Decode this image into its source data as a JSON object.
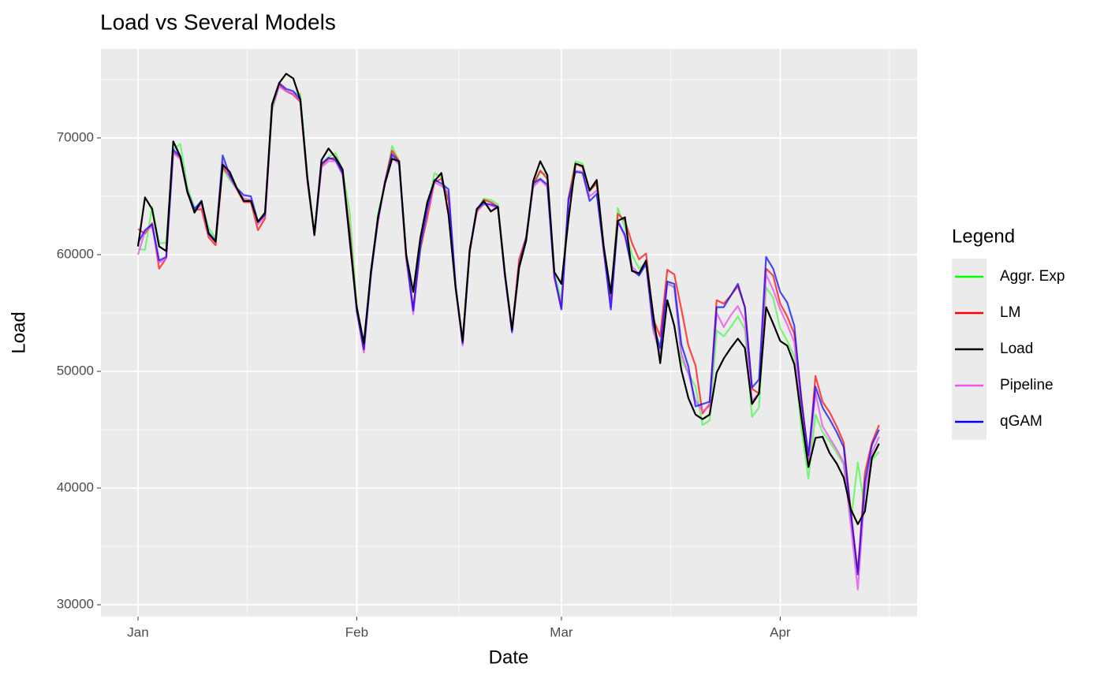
{
  "chart_data": {
    "type": "line",
    "title": "Load vs Several Models",
    "xlabel": "Date",
    "ylabel": "Load",
    "legend_title": "Legend",
    "legend": "right",
    "grid": true,
    "x": [
      0,
      1,
      2,
      3,
      4,
      5,
      6,
      7,
      8,
      9,
      10,
      11,
      12,
      13,
      14,
      15,
      16,
      17,
      18,
      19,
      20,
      21,
      22,
      23,
      24,
      25,
      26,
      27,
      28,
      29,
      30,
      31,
      32,
      33,
      34,
      35,
      36,
      37,
      38,
      39,
      40,
      41,
      42,
      43,
      44,
      45,
      46,
      47,
      48,
      49,
      50,
      51,
      52,
      53,
      54,
      55,
      56,
      57,
      58,
      59,
      60,
      61,
      62,
      63,
      64,
      65,
      66,
      67,
      68,
      69,
      70,
      71,
      72,
      73,
      74,
      75,
      76,
      77,
      78,
      79,
      80,
      81,
      82,
      83,
      84,
      85,
      86,
      87,
      88,
      89,
      90,
      91,
      92,
      93,
      94,
      95,
      96,
      97,
      98,
      99,
      100,
      101,
      102,
      103,
      104,
      105
    ],
    "xlim": [
      -5.25,
      110.4
    ],
    "xticks": [
      {
        "value": 0,
        "label": "Jan"
      },
      {
        "value": 31,
        "label": "Feb"
      },
      {
        "value": 60,
        "label": "Mar"
      },
      {
        "value": 91,
        "label": "Apr"
      }
    ],
    "ylim": [
      28990,
      77630
    ],
    "yticks": [
      30000,
      40000,
      50000,
      60000,
      70000
    ],
    "series": [
      {
        "name": "Aggr. Exp",
        "color": "#00ff00",
        "opacity": 0.5,
        "values": [
          60500,
          60400,
          64100,
          61000,
          61000,
          69000,
          69500,
          65800,
          64000,
          64400,
          62300,
          61400,
          67400,
          66400,
          65600,
          64600,
          64500,
          62900,
          63500,
          72300,
          74500,
          74000,
          73800,
          73800,
          66600,
          61900,
          67600,
          68400,
          68700,
          67200,
          63600,
          55700,
          52000,
          58000,
          63500,
          66100,
          69300,
          68000,
          60000,
          55300,
          60200,
          63700,
          67000,
          66600,
          64900,
          57000,
          52800,
          60300,
          63700,
          64800,
          64700,
          64300,
          58400,
          53400,
          58800,
          61200,
          65900,
          67100,
          66800,
          58300,
          56200,
          64800,
          68000,
          67800,
          65400,
          66200,
          60400,
          56000,
          64000,
          62300,
          60000,
          58800,
          59300,
          53500,
          51500,
          57700,
          57200,
          51000,
          49800,
          48700,
          45400,
          45800,
          53500,
          53000,
          53800,
          54700,
          53600,
          46100,
          46900,
          57200,
          56300,
          53700,
          52600,
          51300,
          45100,
          40800,
          46300,
          44800,
          44000,
          43000,
          42000,
          37100,
          42200,
          38200,
          42400,
          43100
        ]
      },
      {
        "name": "LM",
        "color": "#ff0000",
        "opacity": 0.7,
        "values": [
          62200,
          61800,
          62700,
          58800,
          59700,
          68800,
          68300,
          65300,
          63800,
          63900,
          61500,
          60800,
          67500,
          66700,
          65600,
          64500,
          64500,
          62100,
          63100,
          72600,
          74600,
          74000,
          73700,
          73100,
          66300,
          61700,
          67700,
          68200,
          68300,
          67000,
          62000,
          55300,
          51800,
          58600,
          62800,
          66300,
          68900,
          68000,
          59600,
          55400,
          60500,
          63200,
          66200,
          66500,
          64600,
          57200,
          52500,
          60500,
          63600,
          64700,
          64500,
          64100,
          58100,
          53500,
          59600,
          61500,
          66000,
          67200,
          66500,
          58000,
          55600,
          64800,
          67800,
          67500,
          65500,
          66100,
          60200,
          56200,
          63500,
          62900,
          61000,
          59600,
          60100,
          54500,
          53000,
          58700,
          58300,
          55300,
          52200,
          50500,
          46400,
          47200,
          56100,
          55800,
          56500,
          57300,
          55500,
          48500,
          48100,
          58800,
          58200,
          55800,
          54700,
          53200,
          47800,
          42300,
          49600,
          47400,
          46500,
          45300,
          43900,
          38000,
          32800,
          41300,
          43900,
          45400
        ]
      },
      {
        "name": "Load",
        "color": "#000000",
        "opacity": 1,
        "values": [
          60700,
          64900,
          63900,
          60700,
          60300,
          69700,
          68400,
          65400,
          63600,
          64600,
          61800,
          61100,
          67700,
          67100,
          65700,
          64600,
          64600,
          62800,
          63600,
          72900,
          74700,
          75500,
          75100,
          73300,
          66600,
          61700,
          68100,
          69100,
          68300,
          67300,
          61200,
          55500,
          52400,
          58500,
          63200,
          66100,
          68200,
          68000,
          60000,
          56800,
          61400,
          64500,
          66300,
          67000,
          63400,
          57200,
          52600,
          60300,
          63900,
          64600,
          63700,
          64100,
          58300,
          53600,
          58900,
          61200,
          66300,
          68000,
          66800,
          58500,
          57500,
          63000,
          67800,
          67600,
          65500,
          66400,
          60700,
          56700,
          62900,
          63200,
          58600,
          58400,
          59500,
          54900,
          50700,
          56100,
          53900,
          50100,
          47700,
          46300,
          45900,
          46300,
          49900,
          51100,
          52000,
          52800,
          52000,
          47200,
          48100,
          55500,
          54100,
          52600,
          52200,
          50600,
          46100,
          41800,
          44300,
          44400,
          43000,
          42100,
          40900,
          38200,
          36900,
          38000,
          42600,
          43800
        ]
      },
      {
        "name": "Pipeline",
        "color": "#ee55ee",
        "opacity": 0.8,
        "values": [
          60000,
          62000,
          62400,
          59300,
          59700,
          68700,
          68200,
          65300,
          63700,
          64300,
          61700,
          61100,
          67900,
          66600,
          65600,
          64800,
          64700,
          62600,
          63300,
          72600,
          74400,
          74000,
          73800,
          73200,
          66400,
          61600,
          67500,
          68000,
          68000,
          66800,
          61300,
          55100,
          51600,
          58200,
          62900,
          66100,
          68400,
          67700,
          59800,
          54900,
          60600,
          63700,
          66200,
          65900,
          65300,
          57200,
          52200,
          60200,
          63700,
          64300,
          64200,
          64000,
          58100,
          53300,
          58900,
          61300,
          65800,
          66400,
          65800,
          58000,
          55400,
          64500,
          67200,
          67100,
          65000,
          65500,
          60300,
          55500,
          63000,
          61500,
          59000,
          58300,
          59300,
          53500,
          51500,
          57500,
          57200,
          51500,
          49800,
          47500,
          46600,
          47000,
          55000,
          53800,
          54800,
          55600,
          54300,
          47500,
          48100,
          58300,
          57000,
          55300,
          54000,
          52500,
          46500,
          42000,
          48200,
          45300,
          44300,
          43300,
          42200,
          36800,
          31300,
          39700,
          43000,
          44400
        ]
      },
      {
        "name": "qGAM",
        "color": "#0000ff",
        "opacity": 0.7,
        "values": [
          61000,
          62100,
          62600,
          59500,
          59800,
          69000,
          68400,
          65400,
          63900,
          64600,
          61900,
          61200,
          68500,
          66800,
          65700,
          65100,
          65000,
          62800,
          63400,
          72800,
          74700,
          74200,
          74000,
          73300,
          66500,
          61700,
          67800,
          68300,
          68100,
          67000,
          61500,
          55200,
          51900,
          58300,
          63000,
          66200,
          68600,
          67900,
          60000,
          55200,
          60800,
          64000,
          66400,
          66100,
          65600,
          57400,
          52400,
          60300,
          63900,
          64400,
          64300,
          64100,
          58200,
          53400,
          59100,
          61400,
          66100,
          66500,
          66000,
          58200,
          55300,
          64700,
          67100,
          67000,
          64600,
          65200,
          60400,
          55300,
          62800,
          61700,
          58700,
          58200,
          59200,
          54000,
          52000,
          57700,
          57500,
          52300,
          50400,
          47000,
          47200,
          47400,
          55500,
          55500,
          56500,
          57500,
          55500,
          48600,
          49300,
          59800,
          58800,
          56800,
          55900,
          53900,
          47500,
          42800,
          48700,
          46900,
          45900,
          44800,
          43500,
          37900,
          32600,
          40500,
          43700,
          45000
        ]
      }
    ]
  }
}
